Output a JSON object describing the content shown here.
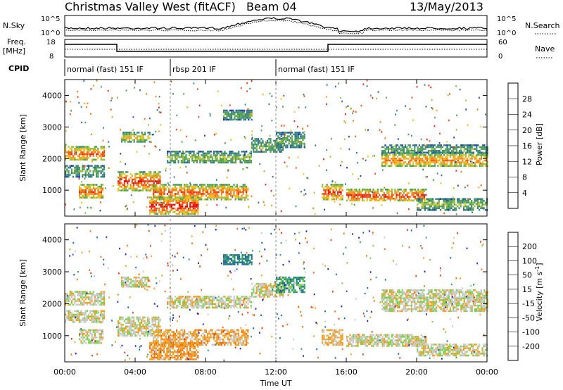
{
  "header": {
    "station": "Christmas Valley West (fitACF)",
    "beam": "Beam 04",
    "date": "13/May/2013"
  },
  "noise_panel": {
    "left_label": "N.Sky",
    "right_label": "N.Search",
    "left_ticks": [
      "10^5",
      "10^0"
    ],
    "right_ticks": [
      "10^5",
      "10^0"
    ]
  },
  "freq_panel": {
    "left_label_1": "Freq.",
    "left_label_2": "[MHz]",
    "right_label": "Nave",
    "left_ticks": [
      "18",
      "8"
    ],
    "right_ticks": [
      "60",
      "0"
    ]
  },
  "cpid": {
    "label": "CPID",
    "segments": [
      {
        "name": "normal (fast) 151 IF",
        "start": 0,
        "end": 6
      },
      {
        "name": "rbsp 201 IF",
        "start": 6,
        "end": 12
      },
      {
        "name": "normal (fast) 151 IF",
        "start": 12,
        "end": 24
      }
    ]
  },
  "power_panel": {
    "ylabel": "Slant Range [km]",
    "colorbar_label": "Power [dB]",
    "colorbar_ticks": [
      "28",
      "24",
      "20",
      "16",
      "12",
      "8",
      "4"
    ],
    "colors": [
      "#1010e0",
      "#1f3fa8",
      "#2d6f8f",
      "#3f8f6f",
      "#55a24e",
      "#9cbd3a",
      "#e8c21e",
      "#f7a21a",
      "#f27a17",
      "#ec4e14",
      "#e42512",
      "#e00000"
    ]
  },
  "velocity_panel": {
    "ylabel": "Slant Range [km]",
    "colorbar_label": "Velocity [m s",
    "colorbar_sup": "-1",
    "colorbar_ticks": [
      "200",
      "100",
      "50",
      "15",
      "-15",
      "-50",
      "-100",
      "-200"
    ],
    "colors": [
      "#2020c0",
      "#1f6f8f",
      "#2fa05f",
      "#7ad04a",
      "#c8c8c8",
      "#c8c8c8",
      "#f0a020",
      "#f07010",
      "#e83a10",
      "#e00000"
    ]
  },
  "xaxis": {
    "label": "Time UT",
    "ticks": [
      "00:00",
      "04:00",
      "08:00",
      "12:00",
      "16:00",
      "20:00",
      "00:00"
    ]
  },
  "chart_data": {
    "type": "heatmap",
    "title": "Christmas Valley West (fitACF) Beam 04 13/May/2013",
    "xlabel": "Time UT",
    "ylabel": "Slant Range [km]",
    "x_range_hours": [
      0,
      24
    ],
    "y_range_km": [
      180,
      4500
    ],
    "yticks_km": [
      1000,
      2000,
      3000,
      4000
    ],
    "power_colorbar_db": [
      4,
      8,
      12,
      16,
      20,
      24,
      28
    ],
    "velocity_colorbar_ms": [
      -200,
      -100,
      -50,
      -15,
      15,
      50,
      100,
      200
    ],
    "echo_bands": [
      {
        "t0": 0.0,
        "t1": 2.2,
        "r0": 1950,
        "r1": 2400,
        "power": 24,
        "vel": 0
      },
      {
        "t0": 0.0,
        "t1": 2.2,
        "r0": 1450,
        "r1": 1800,
        "power": 12,
        "vel": 0
      },
      {
        "t0": 0.8,
        "t1": 2.2,
        "r0": 750,
        "r1": 1200,
        "power": 24,
        "vel": 0
      },
      {
        "t0": 3.0,
        "t1": 5.4,
        "r0": 1000,
        "r1": 1600,
        "power": 26,
        "vel": 0
      },
      {
        "t0": 3.2,
        "t1": 4.8,
        "r0": 2550,
        "r1": 2850,
        "power": 18,
        "vel": 0
      },
      {
        "t0": 5.0,
        "t1": 10.4,
        "r0": 700,
        "r1": 1200,
        "power": 24,
        "vel": -30
      },
      {
        "t0": 4.8,
        "t1": 7.6,
        "r0": 250,
        "r1": 800,
        "power": 28,
        "vel": -40
      },
      {
        "t0": 5.8,
        "t1": 10.6,
        "r0": 1850,
        "r1": 2250,
        "power": 14,
        "vel": 0
      },
      {
        "t0": 9.0,
        "t1": 10.6,
        "r0": 3250,
        "r1": 3550,
        "power": 12,
        "vel": 60
      },
      {
        "t0": 10.6,
        "t1": 12.4,
        "r0": 2200,
        "r1": 2650,
        "power": 12,
        "vel": 0
      },
      {
        "t0": 12.0,
        "t1": 13.6,
        "r0": 2350,
        "r1": 2850,
        "power": 12,
        "vel": 40
      },
      {
        "t0": 14.6,
        "t1": 15.8,
        "r0": 700,
        "r1": 1200,
        "power": 26,
        "vel": -20
      },
      {
        "t0": 16.0,
        "t1": 20.5,
        "r0": 650,
        "r1": 1050,
        "power": 26,
        "vel": 0
      },
      {
        "t0": 18.0,
        "t1": 24.0,
        "r0": 1750,
        "r1": 2200,
        "power": 22,
        "vel": 0
      },
      {
        "t0": 18.0,
        "t1": 24.0,
        "r0": 2200,
        "r1": 2450,
        "power": 12,
        "vel": 0
      },
      {
        "t0": 20.0,
        "t1": 24.0,
        "r0": 400,
        "r1": 750,
        "power": 14,
        "vel": 0
      }
    ]
  }
}
